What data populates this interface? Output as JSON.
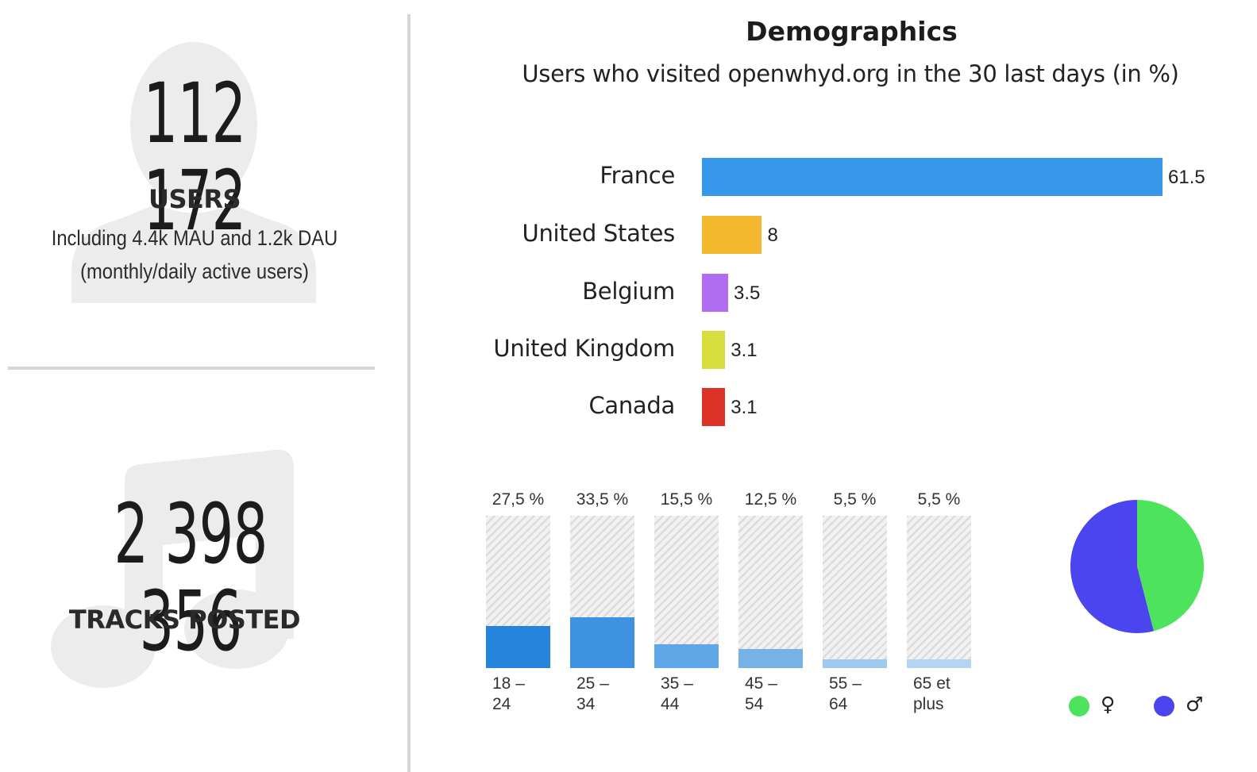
{
  "stats": {
    "users": {
      "number": "112 172",
      "label": "USERS",
      "detail_line1": "Including 4.4k MAU and 1.2k DAU",
      "detail_line2": "(monthly/daily active users)",
      "icon": "user-silhouette-icon"
    },
    "tracks": {
      "number": "2 398 356",
      "label": "TRACKS POSTED",
      "icon": "music-note-icon"
    }
  },
  "demographics": {
    "title": "Demographics",
    "subtitle": "Users who visited openwhyd.org in the 30 last days (in %)"
  },
  "chart_data": [
    {
      "type": "bar",
      "orientation": "horizontal",
      "categories": [
        "France",
        "United States",
        "Belgium",
        "United Kingdom",
        "Canada"
      ],
      "values": [
        61.5,
        8,
        3.5,
        3.1,
        3.1
      ],
      "value_labels": [
        "61.5",
        "8",
        "3.5",
        "3.1",
        "3.1"
      ],
      "colors": [
        "#3797eb",
        "#f2b72c",
        "#b06cf0",
        "#d8dd3e",
        "#dd3228"
      ]
    },
    {
      "type": "bar",
      "orientation": "vertical",
      "categories": [
        "18 –\n24",
        "25 –\n34",
        "35 –\n44",
        "45 –\n54",
        "55 –\n64",
        "65 et\nplus"
      ],
      "values": [
        27.5,
        33.5,
        15.5,
        12.5,
        5.5,
        5.5
      ],
      "value_labels": [
        "27,5 %",
        "33,5 %",
        "15,5 %",
        "12,5 %",
        "5,5 %",
        "5,5 %"
      ],
      "colors": [
        "#2684dc",
        "#3e92df",
        "#5ea6e5",
        "#76b2e8",
        "#9ec9f0",
        "#b3d5f3"
      ],
      "ylim": [
        0,
        100
      ]
    },
    {
      "type": "pie",
      "categories": [
        "♀",
        "♂"
      ],
      "values": [
        46,
        54
      ],
      "colors": [
        "#4de35c",
        "#4a45ef"
      ],
      "legend_position": "bottom"
    }
  ]
}
